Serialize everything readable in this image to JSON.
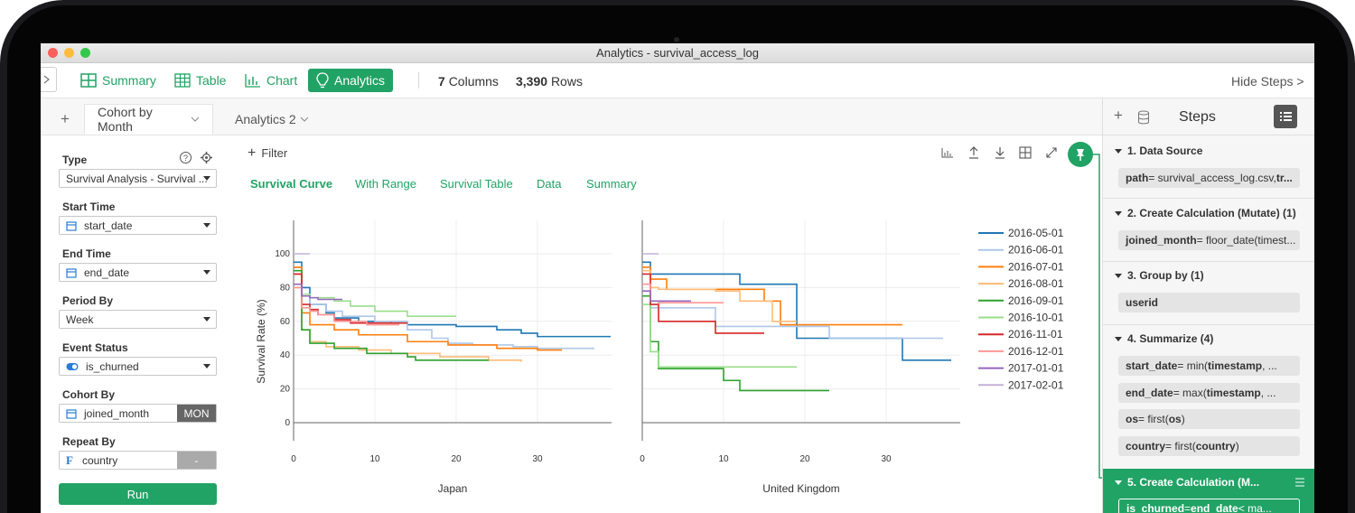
{
  "window": {
    "title": "Analytics - survival_access_log"
  },
  "toolbar": {
    "summary": "Summary",
    "table": "Table",
    "chart": "Chart",
    "analytics": "Analytics",
    "columns_count": "7",
    "columns_label": "Columns",
    "rows_count": "3,390",
    "rows_label": "Rows",
    "hide_steps": "Hide Steps >"
  },
  "tabs": {
    "add": "+",
    "active": "Cohort by Month",
    "second": "Analytics 2"
  },
  "settings": {
    "type_label": "Type",
    "type_value": "Survival Analysis - Survival ...",
    "start_time_label": "Start Time",
    "start_time_value": "start_date",
    "end_time_label": "End Time",
    "end_time_value": "end_date",
    "period_label": "Period By",
    "period_value": "Week",
    "event_label": "Event Status",
    "event_value": "is_churned",
    "cohort_label": "Cohort By",
    "cohort_value": "joined_month",
    "cohort_tag": "MON",
    "repeat_label": "Repeat By",
    "repeat_value": "country",
    "repeat_tag": "-",
    "run": "Run"
  },
  "viz": {
    "filter": "Filter",
    "subtabs": [
      "Survival Curve",
      "With Range",
      "Survival Table",
      "Data",
      "Summary"
    ]
  },
  "chart_data": {
    "type": "line",
    "ylabel": "Survival Rate (%)",
    "y_ticks": [
      0,
      20,
      40,
      60,
      80,
      100
    ],
    "x_ticks": [
      0,
      10,
      20,
      30
    ],
    "panels": [
      {
        "name": "Japan",
        "series": [
          {
            "name": "2016-05-01",
            "color": "#1f77b4",
            "points": [
              [
                0,
                95
              ],
              [
                1,
                80
              ],
              [
                2,
                70
              ],
              [
                4,
                65
              ],
              [
                5,
                62
              ],
              [
                8,
                60
              ],
              [
                12,
                59
              ],
              [
                14,
                58
              ],
              [
                20,
                57
              ],
              [
                25,
                55
              ],
              [
                28,
                53
              ],
              [
                30,
                51
              ],
              [
                39,
                51
              ]
            ]
          },
          {
            "name": "2016-06-01",
            "color": "#aec7e8",
            "points": [
              [
                0,
                92
              ],
              [
                1,
                75
              ],
              [
                2,
                70
              ],
              [
                4,
                66
              ],
              [
                6,
                63
              ],
              [
                10,
                60
              ],
              [
                14,
                55
              ],
              [
                17,
                50
              ],
              [
                19,
                47
              ],
              [
                22,
                46
              ],
              [
                27,
                45
              ],
              [
                30,
                44
              ],
              [
                37,
                44
              ]
            ]
          },
          {
            "name": "2016-07-01",
            "color": "#ff7f0e",
            "points": [
              [
                0,
                92
              ],
              [
                1,
                65
              ],
              [
                2,
                58
              ],
              [
                5,
                55
              ],
              [
                8,
                52
              ],
              [
                14,
                48
              ],
              [
                19,
                46
              ],
              [
                25,
                44
              ],
              [
                30,
                43
              ],
              [
                33,
                43
              ]
            ]
          },
          {
            "name": "2016-08-01",
            "color": "#ffbb78",
            "points": [
              [
                0,
                88
              ],
              [
                1,
                55
              ],
              [
                2,
                48
              ],
              [
                4,
                45
              ],
              [
                8,
                43
              ],
              [
                12,
                41
              ],
              [
                18,
                39
              ],
              [
                24,
                37
              ],
              [
                28,
                36
              ]
            ]
          },
          {
            "name": "2016-09-01",
            "color": "#2ca02c",
            "points": [
              [
                0,
                90
              ],
              [
                1,
                55
              ],
              [
                2,
                47
              ],
              [
                4,
                47
              ],
              [
                5,
                44
              ],
              [
                8,
                44
              ],
              [
                9,
                41
              ],
              [
                13,
                41
              ],
              [
                14,
                39
              ],
              [
                15,
                37
              ],
              [
                24,
                37
              ]
            ]
          },
          {
            "name": "2016-10-01",
            "color": "#98df8a",
            "points": [
              [
                0,
                80
              ],
              [
                1,
                76
              ],
              [
                2,
                74
              ],
              [
                4,
                74
              ],
              [
                5,
                72
              ],
              [
                7,
                69
              ],
              [
                10,
                66
              ],
              [
                13,
                66
              ],
              [
                14,
                63
              ],
              [
                20,
                63
              ]
            ]
          },
          {
            "name": "2016-11-01",
            "color": "#d62728",
            "points": [
              [
                0,
                88
              ],
              [
                1,
                70
              ],
              [
                2,
                67
              ],
              [
                3,
                64
              ],
              [
                5,
                61
              ],
              [
                7,
                59
              ],
              [
                14,
                59
              ]
            ]
          },
          {
            "name": "2016-12-01",
            "color": "#ff9896",
            "points": [
              [
                0,
                80
              ],
              [
                1,
                68
              ],
              [
                2,
                66
              ],
              [
                3,
                64
              ],
              [
                5,
                60
              ],
              [
                9,
                58
              ],
              [
                13,
                58
              ]
            ]
          },
          {
            "name": "2017-01-01",
            "color": "#9467bd",
            "points": [
              [
                0,
                82
              ],
              [
                1,
                75
              ],
              [
                2,
                74
              ],
              [
                3,
                73
              ],
              [
                6,
                73
              ]
            ]
          },
          {
            "name": "2017-02-01",
            "color": "#c5b0d5",
            "points": [
              [
                0,
                100
              ],
              [
                2,
                100
              ]
            ]
          }
        ]
      },
      {
        "name": "United Kingdom",
        "series": [
          {
            "name": "2016-05-01",
            "color": "#1f77b4",
            "points": [
              [
                0,
                95
              ],
              [
                1,
                88
              ],
              [
                7,
                88
              ],
              [
                12,
                82
              ],
              [
                17,
                82
              ],
              [
                19,
                50
              ],
              [
                23,
                50
              ],
              [
                31,
                50
              ],
              [
                32,
                37
              ],
              [
                38,
                37
              ]
            ]
          },
          {
            "name": "2016-06-01",
            "color": "#aec7e8",
            "points": [
              [
                0,
                82
              ],
              [
                1,
                68
              ],
              [
                7,
                68
              ],
              [
                9,
                57
              ],
              [
                20,
                57
              ],
              [
                23,
                50
              ],
              [
                37,
                50
              ]
            ]
          },
          {
            "name": "2016-07-01",
            "color": "#ff7f0e",
            "points": [
              [
                0,
                92
              ],
              [
                1,
                85
              ],
              [
                3,
                79
              ],
              [
                12,
                79
              ],
              [
                15,
                72
              ],
              [
                17,
                58
              ],
              [
                32,
                58
              ]
            ]
          },
          {
            "name": "2016-08-01",
            "color": "#ffbb78",
            "points": [
              [
                0,
                90
              ],
              [
                1,
                80
              ],
              [
                2,
                79
              ],
              [
                9,
                78
              ],
              [
                12,
                72
              ],
              [
                16,
                60
              ],
              [
                19,
                60
              ]
            ]
          },
          {
            "name": "2016-09-01",
            "color": "#2ca02c",
            "points": [
              [
                0,
                75
              ],
              [
                1,
                48
              ],
              [
                2,
                32
              ],
              [
                9,
                32
              ],
              [
                10,
                25
              ],
              [
                11,
                25
              ],
              [
                12,
                19
              ],
              [
                23,
                19
              ]
            ]
          },
          {
            "name": "2016-10-01",
            "color": "#98df8a",
            "points": [
              [
                0,
                70
              ],
              [
                1,
                42
              ],
              [
                2,
                33
              ],
              [
                19,
                33
              ]
            ]
          },
          {
            "name": "2016-11-01",
            "color": "#d62728",
            "points": [
              [
                0,
                88
              ],
              [
                1,
                70
              ],
              [
                2,
                60
              ],
              [
                6,
                60
              ],
              [
                9,
                53
              ],
              [
                15,
                53
              ]
            ]
          },
          {
            "name": "2016-12-01",
            "color": "#ff9896",
            "points": [
              [
                0,
                82
              ],
              [
                1,
                72
              ],
              [
                2,
                71
              ],
              [
                10,
                71
              ]
            ]
          },
          {
            "name": "2017-01-01",
            "color": "#9467bd",
            "points": [
              [
                0,
                78
              ],
              [
                1,
                72
              ],
              [
                6,
                72
              ]
            ]
          },
          {
            "name": "2017-02-01",
            "color": "#c5b0d5",
            "points": [
              [
                0,
                100
              ],
              [
                2,
                100
              ]
            ]
          }
        ]
      }
    ],
    "legend": [
      "2016-05-01",
      "2016-06-01",
      "2016-07-01",
      "2016-08-01",
      "2016-09-01",
      "2016-10-01",
      "2016-11-01",
      "2016-12-01",
      "2017-01-01",
      "2017-02-01"
    ]
  },
  "steps_panel": {
    "title": "Steps",
    "items": [
      {
        "header": "1. Data Source",
        "pills": [
          {
            "key": "path",
            "rest": " = survival_access_log.csv, ",
            "tail": "tr..."
          }
        ]
      },
      {
        "header": "2. Create Calculation (Mutate) (1)",
        "pills": [
          {
            "key": "joined_month",
            "rest": " = floor_date(timest...",
            "tail": ""
          }
        ]
      },
      {
        "header": "3. Group by (1)",
        "pills": [
          {
            "key": "userid",
            "rest": "",
            "tail": ""
          }
        ]
      },
      {
        "header": "4. Summarize (4)",
        "pills": [
          {
            "key": "start_date",
            "rest": " = min(",
            "tail": "timestamp",
            "end": ", ..."
          },
          {
            "key": "end_date",
            "rest": " = max(",
            "tail": "timestamp",
            "end": ", ..."
          },
          {
            "key": "os",
            "rest": " = first(",
            "tail": "os",
            "end": ")"
          },
          {
            "key": "country",
            "rest": " = first(",
            "tail": "country",
            "end": ")"
          }
        ]
      },
      {
        "header": "5. Create Calculation (M...",
        "pills": [
          {
            "key": "is_churned",
            "rest": " = ",
            "tail": "end_date",
            "end": " < ma..."
          }
        ]
      }
    ]
  }
}
